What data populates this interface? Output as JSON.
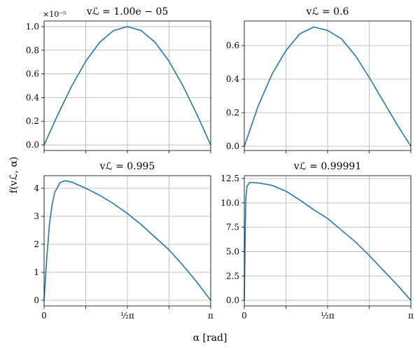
{
  "ylabel": "f(vℒ, α)",
  "xlabel": "α [rad]",
  "chart_data": [
    {
      "type": "line",
      "title": "vℒ = 1.00e − 05",
      "offset_label": "×10⁻⁵",
      "color": "#1f77b4",
      "x": [
        0,
        0.2618,
        0.5236,
        0.7854,
        1.0472,
        1.309,
        1.5708,
        1.8326,
        2.0944,
        2.3562,
        2.618,
        2.8798,
        3.1416
      ],
      "values": [
        0,
        0.259,
        0.5,
        0.707,
        0.866,
        0.966,
        1.0,
        0.966,
        0.866,
        0.707,
        0.5,
        0.259,
        0
      ],
      "xlim": [
        0,
        3.1416
      ],
      "ylim": [
        -0.047,
        1.047
      ],
      "xticks": [
        {
          "value": 0
        },
        {
          "value": 0.7854
        },
        {
          "value": 1.5708
        },
        {
          "value": 2.3562
        },
        {
          "value": 3.1416
        }
      ],
      "yticks": [
        {
          "value": 0,
          "label": "0.0"
        },
        {
          "value": 0.2,
          "label": "0.2"
        },
        {
          "value": 0.4,
          "label": "0.4"
        },
        {
          "value": 0.6,
          "label": "0.6"
        },
        {
          "value": 0.8,
          "label": "0.8"
        },
        {
          "value": 1.0,
          "label": "1.0"
        }
      ],
      "grid": true
    },
    {
      "type": "line",
      "title": "vℒ = 0.6",
      "color": "#1f77b4",
      "x": [
        0,
        0.2618,
        0.5236,
        0.7854,
        1.0472,
        1.309,
        1.5708,
        1.8326,
        2.0944,
        2.3562,
        2.618,
        2.8798,
        3.1416
      ],
      "values": [
        0,
        0.24,
        0.43,
        0.57,
        0.67,
        0.71,
        0.69,
        0.64,
        0.54,
        0.41,
        0.27,
        0.13,
        0
      ],
      "xlim": [
        0,
        3.1416
      ],
      "ylim": [
        -0.025,
        0.746
      ],
      "xticks": [
        {
          "value": 0
        },
        {
          "value": 0.7854
        },
        {
          "value": 1.5708
        },
        {
          "value": 2.3562
        },
        {
          "value": 3.1416
        }
      ],
      "yticks": [
        {
          "value": 0,
          "label": "0.0"
        },
        {
          "value": 0.2,
          "label": "0.2"
        },
        {
          "value": 0.4,
          "label": "0.4"
        },
        {
          "value": 0.6,
          "label": "0.6"
        }
      ],
      "grid": true
    },
    {
      "type": "line",
      "title": "vℒ = 0.995",
      "color": "#1f77b4",
      "x": [
        0,
        0.05,
        0.1,
        0.15,
        0.2,
        0.3,
        0.4,
        0.5236,
        0.7854,
        1.0472,
        1.309,
        1.5708,
        1.8326,
        2.0944,
        2.3562,
        2.618,
        2.8798,
        3.1416
      ],
      "values": [
        0,
        1.5,
        2.7,
        3.4,
        3.85,
        4.2,
        4.27,
        4.22,
        4.0,
        3.75,
        3.45,
        3.1,
        2.7,
        2.25,
        1.8,
        1.25,
        0.65,
        0
      ],
      "xlim": [
        0,
        3.1416
      ],
      "ylim": [
        -0.2,
        4.45
      ],
      "xticks": [
        {
          "value": 0,
          "label": "0"
        },
        {
          "value": 0.7854
        },
        {
          "value": 1.5708,
          "label": "½π"
        },
        {
          "value": 2.3562
        },
        {
          "value": 3.1416,
          "label": "π"
        }
      ],
      "yticks": [
        0,
        1,
        2,
        3,
        4
      ],
      "grid": true
    },
    {
      "type": "line",
      "title": "vℒ = 0.99991",
      "color": "#1f77b4",
      "x": [
        0,
        0.01,
        0.02,
        0.03,
        0.05,
        0.1,
        0.2618,
        0.5236,
        0.7854,
        1.0472,
        1.309,
        1.5708,
        1.8326,
        2.0944,
        2.3562,
        2.618,
        2.8798,
        3.1416
      ],
      "values": [
        0,
        4,
        8,
        10.5,
        11.7,
        12.1,
        12.05,
        11.8,
        11.2,
        10.3,
        9.3,
        8.4,
        7.2,
        6.0,
        4.6,
        3.1,
        1.6,
        0
      ],
      "xlim": [
        0,
        3.1416
      ],
      "ylim": [
        -0.57,
        12.79
      ],
      "xticks": [
        {
          "value": 0,
          "label": "0"
        },
        {
          "value": 0.7854
        },
        {
          "value": 1.5708,
          "label": "½π"
        },
        {
          "value": 2.3562
        },
        {
          "value": 3.1416,
          "label": "π"
        }
      ],
      "yticks": [
        {
          "value": 0,
          "label": "0.0"
        },
        {
          "value": 2.5,
          "label": "2.5"
        },
        {
          "value": 5,
          "label": "5.0"
        },
        {
          "value": 7.5,
          "label": "7.5"
        },
        {
          "value": 10,
          "label": "10.0"
        },
        {
          "value": 12.5,
          "label": "12.5"
        }
      ],
      "grid": true
    }
  ]
}
